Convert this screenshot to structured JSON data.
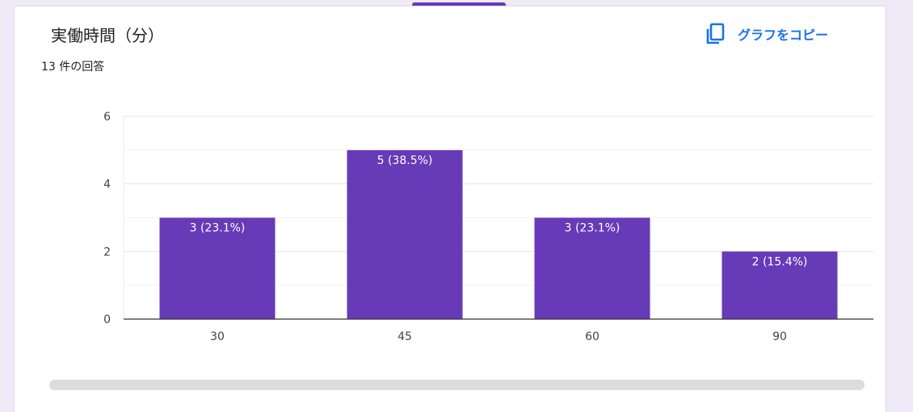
{
  "form": {
    "title": "実働時間（分）",
    "response_count": "13 件の回答",
    "copy_label": "グラフをコピー"
  },
  "colors": {
    "bar": "#673ab7",
    "accent": "#673ab7",
    "link": "#1a73e8"
  },
  "icons": {
    "copy": "copy-icon"
  },
  "chart_data": {
    "type": "bar",
    "categories": [
      "30",
      "45",
      "60",
      "90"
    ],
    "values": [
      3,
      5,
      3,
      2
    ],
    "labels": [
      "3 (23.1%)",
      "5 (38.5%)",
      "3 (23.1%)",
      "2 (15.4%)"
    ],
    "y_ticks": [
      "0",
      "2",
      "4",
      "6"
    ],
    "ylim": [
      0,
      6
    ],
    "grid": true
  }
}
